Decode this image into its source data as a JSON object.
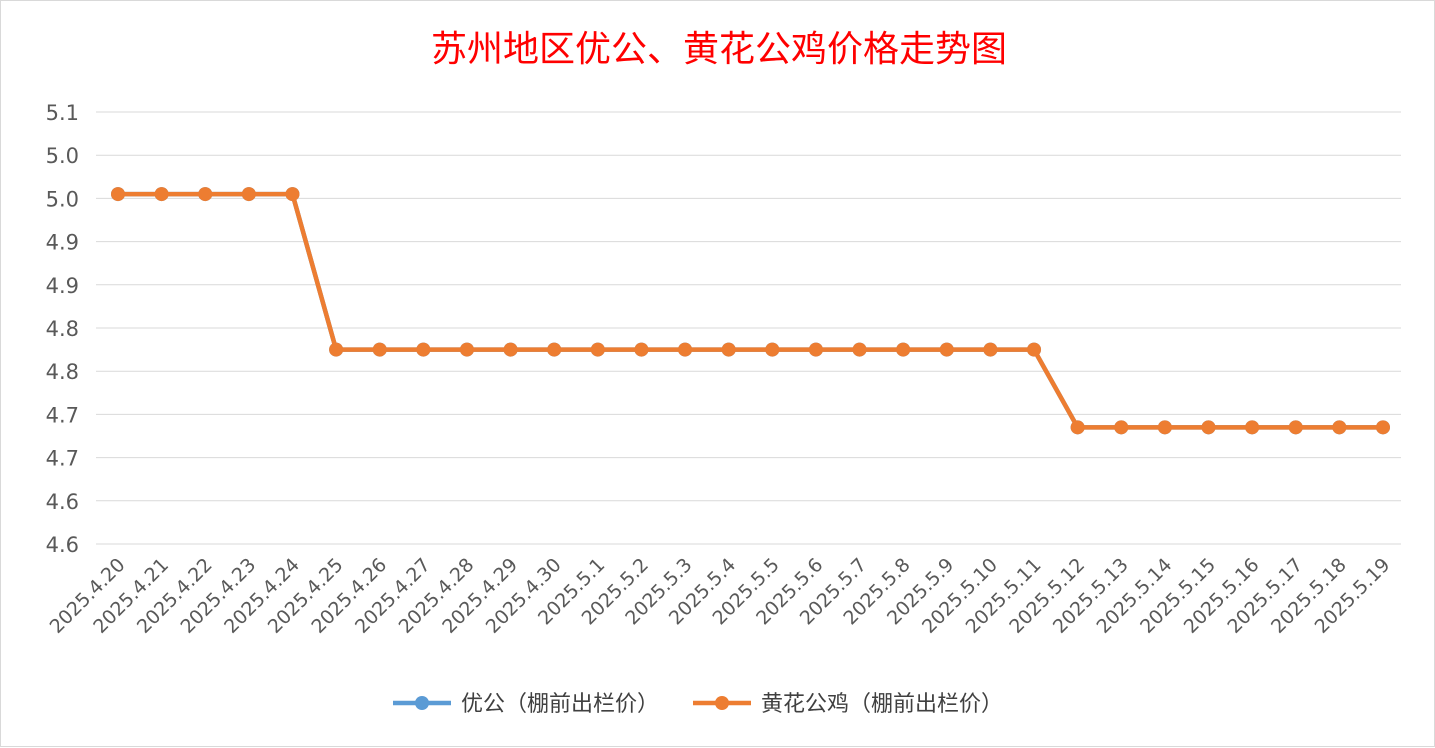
{
  "chart_data": {
    "type": "line",
    "title": "苏州地区优公、黄花公鸡价格走势图",
    "xlabel": "",
    "ylabel": "",
    "y_tick_labels": [
      "5.1",
      "5.0",
      "5.0",
      "4.9",
      "4.9",
      "4.8",
      "4.8",
      "4.7",
      "4.7",
      "4.6",
      "4.6"
    ],
    "ylim": [
      4.55,
      5.05
    ],
    "grid": true,
    "legend_position": "bottom",
    "categories": [
      "2025.4.20",
      "2025.4.21",
      "2025.4.22",
      "2025.4.23",
      "2025.4.24",
      "2025.4.25",
      "2025.4.26",
      "2025.4.27",
      "2025.4.28",
      "2025.4.29",
      "2025.4.30",
      "2025.5.1",
      "2025.5.2",
      "2025.5.3",
      "2025.5.4",
      "2025.5.5",
      "2025.5.6",
      "2025.5.7",
      "2025.5.8",
      "2025.5.9",
      "2025.5.10",
      "2025.5.11",
      "2025.5.12",
      "2025.5.13",
      "2025.5.14",
      "2025.5.15",
      "2025.5.16",
      "2025.5.17",
      "2025.5.18",
      "2025.5.19"
    ],
    "series": [
      {
        "name": "优公（棚前出栏价）",
        "color": "#5b9bd5",
        "values": [
          5.0,
          5.0,
          5.0,
          5.0,
          5.0,
          4.8,
          4.8,
          4.8,
          4.8,
          4.8,
          4.8,
          4.8,
          4.8,
          4.8,
          4.8,
          4.8,
          4.8,
          4.8,
          4.8,
          4.8,
          4.8,
          4.8,
          4.7,
          4.7,
          4.7,
          4.7,
          4.7,
          4.7,
          4.7,
          4.7
        ]
      },
      {
        "name": "黄花公鸡（棚前出栏价）",
        "color": "#ed7d31",
        "values": [
          5.0,
          5.0,
          5.0,
          5.0,
          5.0,
          4.8,
          4.8,
          4.8,
          4.8,
          4.8,
          4.8,
          4.8,
          4.8,
          4.8,
          4.8,
          4.8,
          4.8,
          4.8,
          4.8,
          4.8,
          4.8,
          4.8,
          4.7,
          4.7,
          4.7,
          4.7,
          4.7,
          4.7,
          4.7,
          4.7
        ]
      }
    ]
  }
}
